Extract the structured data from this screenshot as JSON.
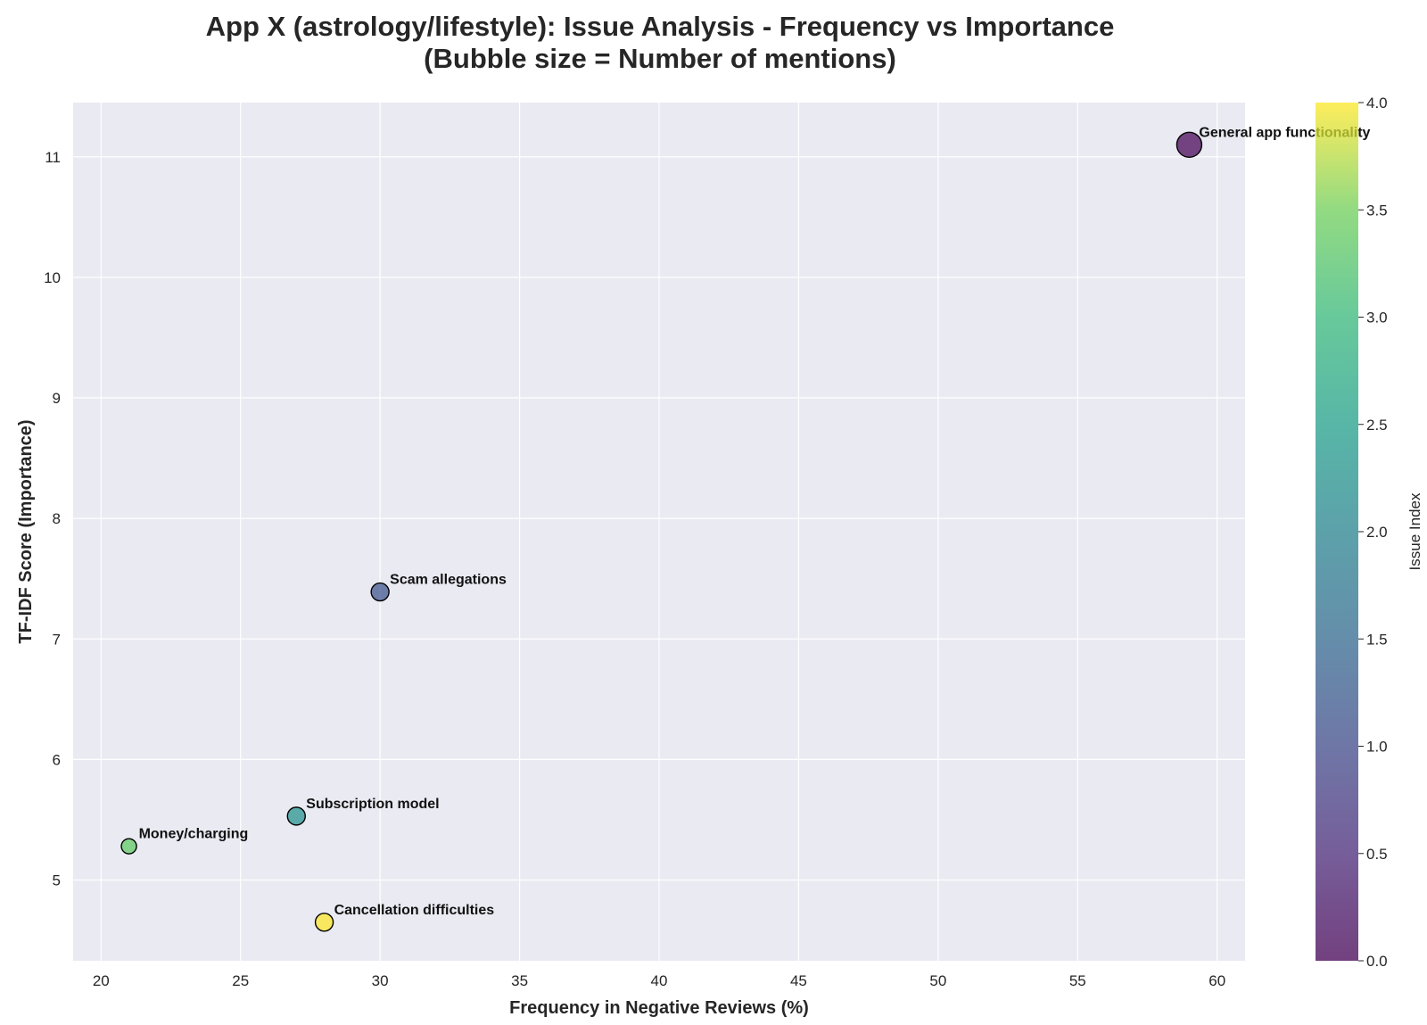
{
  "chart_data": {
    "type": "scatter",
    "title_line1": "App X (astrology/lifestyle): Issue Analysis - Frequency vs Importance",
    "title_line2": "(Bubble size = Number of mentions)",
    "xlabel": "Frequency in Negative Reviews (%)",
    "ylabel": "TF-IDF Score (Importance)",
    "xlim": [
      19,
      61
    ],
    "ylim": [
      4.33,
      11.45
    ],
    "xticks": [
      "20",
      "25",
      "30",
      "35",
      "40",
      "45",
      "50",
      "55",
      "60"
    ],
    "yticks": [
      "5",
      "6",
      "7",
      "8",
      "9",
      "10",
      "11"
    ],
    "grid": true,
    "colorbar": {
      "label": "Issue Index",
      "range": [
        0,
        4
      ],
      "ticks": [
        "0.0",
        "0.5",
        "1.0",
        "1.5",
        "2.0",
        "2.5",
        "3.0",
        "3.5",
        "4.0"
      ],
      "colormap": "viridis"
    },
    "points": [
      {
        "label": "General app functionality",
        "x": 59,
        "y": 11.1,
        "index": 0,
        "size_rank": 5,
        "color": "#440154"
      },
      {
        "label": "Scam allegations",
        "x": 30,
        "y": 7.39,
        "index": 1,
        "size_rank": 3,
        "color": "#3b528b"
      },
      {
        "label": "Subscription model",
        "x": 27,
        "y": 5.53,
        "index": 2,
        "size_rank": 3,
        "color": "#21918c"
      },
      {
        "label": "Money/charging",
        "x": 21,
        "y": 5.28,
        "index": 3,
        "size_rank": 2,
        "color": "#5ec962"
      },
      {
        "label": "Cancellation difficulties",
        "x": 28,
        "y": 4.65,
        "index": 4,
        "size_rank": 3,
        "color": "#fde725"
      }
    ]
  }
}
